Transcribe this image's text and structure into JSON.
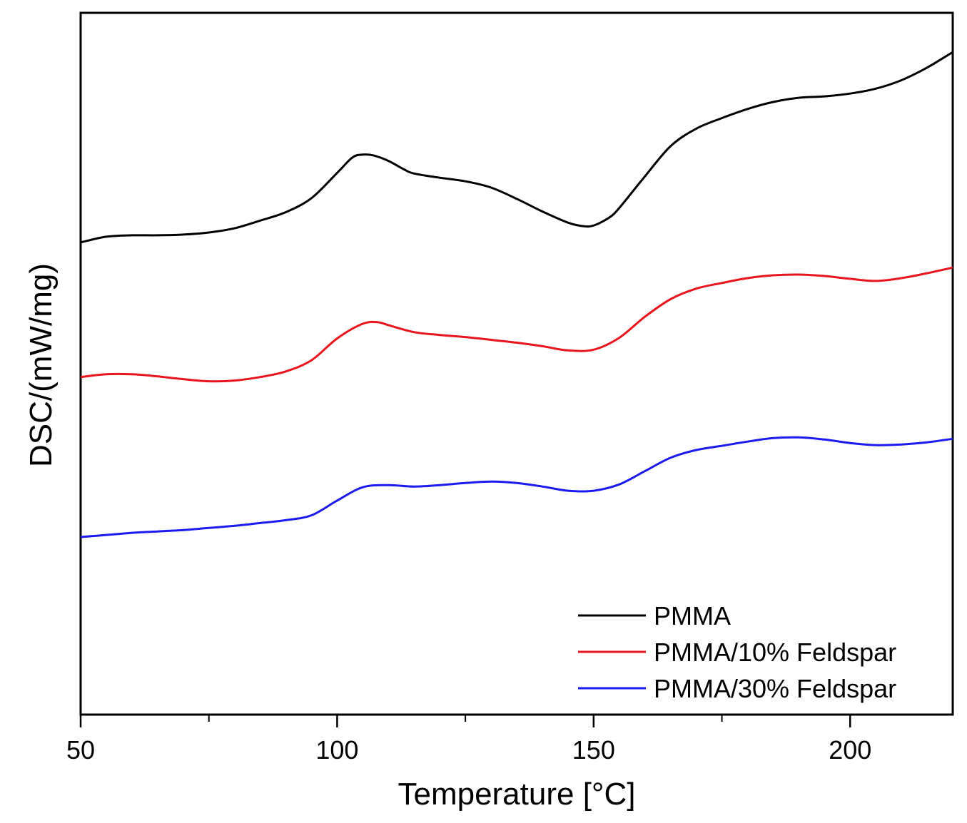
{
  "chart_data": {
    "type": "line",
    "title": "",
    "xlabel": "Temperature [°C]",
    "ylabel": "DSC/(mW/mg)",
    "xlim": [
      50,
      220
    ],
    "ylim": [
      0,
      100
    ],
    "xticks": [
      50,
      100,
      150,
      200
    ],
    "x_minor_ticks": [
      75,
      125,
      175
    ],
    "yticks_shown": false,
    "grid": false,
    "legend_position": "bottom-right",
    "series": [
      {
        "name": "PMMA",
        "color": "#000000",
        "points": [
          [
            50,
            67.3
          ],
          [
            55,
            68.1
          ],
          [
            60,
            68.3
          ],
          [
            65,
            68.3
          ],
          [
            70,
            68.4
          ],
          [
            75,
            68.7
          ],
          [
            80,
            69.3
          ],
          [
            85,
            70.4
          ],
          [
            90,
            71.6
          ],
          [
            95,
            73.6
          ],
          [
            100,
            77.2
          ],
          [
            103,
            79.4
          ],
          [
            105,
            79.8
          ],
          [
            107,
            79.7
          ],
          [
            110,
            78.9
          ],
          [
            113,
            77.7
          ],
          [
            115,
            77.1
          ],
          [
            120,
            76.5
          ],
          [
            125,
            76.0
          ],
          [
            130,
            75.1
          ],
          [
            135,
            73.5
          ],
          [
            140,
            71.7
          ],
          [
            145,
            70.1
          ],
          [
            148,
            69.6
          ],
          [
            150,
            69.7
          ],
          [
            153,
            70.8
          ],
          [
            155,
            72.2
          ],
          [
            160,
            76.7
          ],
          [
            165,
            81.0
          ],
          [
            170,
            83.5
          ],
          [
            175,
            85.0
          ],
          [
            180,
            86.3
          ],
          [
            185,
            87.3
          ],
          [
            190,
            87.9
          ],
          [
            195,
            88.1
          ],
          [
            200,
            88.5
          ],
          [
            205,
            89.2
          ],
          [
            210,
            90.4
          ],
          [
            215,
            92.2
          ],
          [
            220,
            94.4
          ]
        ]
      },
      {
        "name": "PMMA/10% Feldspar",
        "color": "#e8141e",
        "points": [
          [
            50,
            48.1
          ],
          [
            55,
            48.5
          ],
          [
            60,
            48.5
          ],
          [
            65,
            48.2
          ],
          [
            70,
            47.8
          ],
          [
            75,
            47.5
          ],
          [
            80,
            47.6
          ],
          [
            85,
            48.1
          ],
          [
            90,
            48.9
          ],
          [
            95,
            50.5
          ],
          [
            100,
            53.6
          ],
          [
            105,
            55.7
          ],
          [
            108,
            55.9
          ],
          [
            110,
            55.5
          ],
          [
            115,
            54.5
          ],
          [
            120,
            54.1
          ],
          [
            125,
            53.8
          ],
          [
            130,
            53.4
          ],
          [
            135,
            53.0
          ],
          [
            140,
            52.5
          ],
          [
            145,
            51.9
          ],
          [
            150,
            52.0
          ],
          [
            155,
            53.7
          ],
          [
            160,
            56.7
          ],
          [
            165,
            59.2
          ],
          [
            170,
            60.7
          ],
          [
            175,
            61.5
          ],
          [
            180,
            62.2
          ],
          [
            185,
            62.6
          ],
          [
            190,
            62.7
          ],
          [
            195,
            62.5
          ],
          [
            200,
            62.1
          ],
          [
            205,
            61.8
          ],
          [
            210,
            62.2
          ],
          [
            215,
            62.9
          ],
          [
            220,
            63.7
          ]
        ]
      },
      {
        "name": "PMMA/30% Feldspar",
        "color": "#1b1bf0",
        "points": [
          [
            50,
            25.3
          ],
          [
            55,
            25.6
          ],
          [
            60,
            25.9
          ],
          [
            65,
            26.1
          ],
          [
            70,
            26.3
          ],
          [
            75,
            26.6
          ],
          [
            80,
            26.9
          ],
          [
            85,
            27.3
          ],
          [
            90,
            27.7
          ],
          [
            95,
            28.4
          ],
          [
            100,
            30.5
          ],
          [
            105,
            32.4
          ],
          [
            110,
            32.7
          ],
          [
            115,
            32.5
          ],
          [
            120,
            32.7
          ],
          [
            125,
            33.0
          ],
          [
            130,
            33.2
          ],
          [
            135,
            33.0
          ],
          [
            140,
            32.5
          ],
          [
            145,
            31.9
          ],
          [
            150,
            31.9
          ],
          [
            155,
            32.8
          ],
          [
            160,
            34.7
          ],
          [
            165,
            36.6
          ],
          [
            170,
            37.7
          ],
          [
            175,
            38.3
          ],
          [
            180,
            38.9
          ],
          [
            185,
            39.4
          ],
          [
            190,
            39.5
          ],
          [
            195,
            39.2
          ],
          [
            200,
            38.7
          ],
          [
            205,
            38.4
          ],
          [
            210,
            38.5
          ],
          [
            215,
            38.8
          ],
          [
            220,
            39.3
          ]
        ]
      }
    ]
  }
}
